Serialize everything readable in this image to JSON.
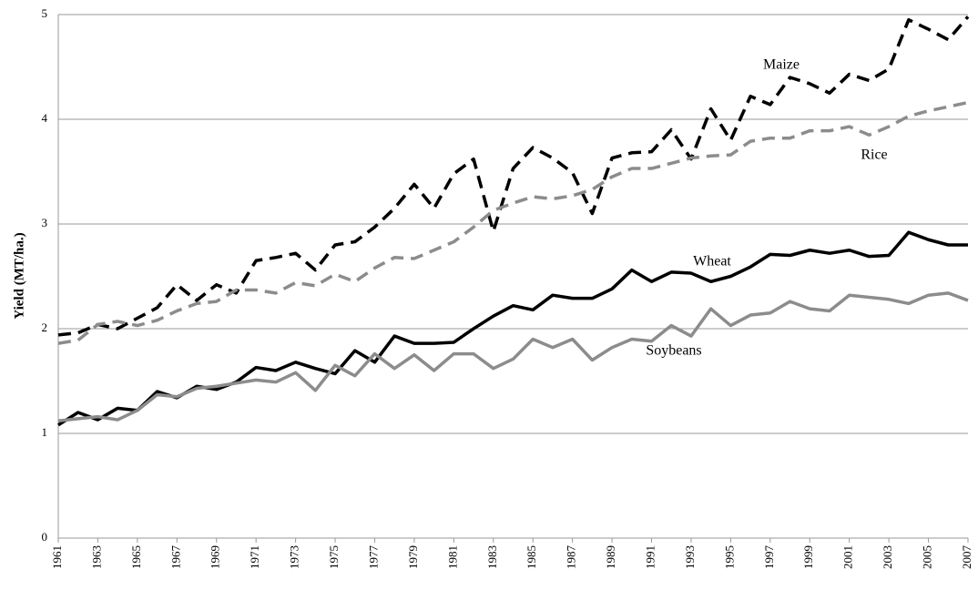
{
  "chart_data": {
    "type": "line",
    "y_label": "Yield (MT/ha.)",
    "x": [
      1961,
      1962,
      1963,
      1964,
      1965,
      1966,
      1967,
      1968,
      1969,
      1970,
      1971,
      1972,
      1973,
      1974,
      1975,
      1976,
      1977,
      1978,
      1979,
      1980,
      1981,
      1982,
      1983,
      1984,
      1985,
      1986,
      1987,
      1988,
      1989,
      1990,
      1991,
      1992,
      1993,
      1994,
      1995,
      1996,
      1997,
      1998,
      1999,
      2000,
      2001,
      2002,
      2003,
      2004,
      2005,
      2006,
      2007
    ],
    "xlim": [
      1961,
      2007
    ],
    "xticks": [
      1961,
      1963,
      1965,
      1967,
      1969,
      1971,
      1973,
      1975,
      1977,
      1979,
      1981,
      1983,
      1985,
      1987,
      1989,
      1991,
      1993,
      1995,
      1997,
      1999,
      2001,
      2003,
      2005,
      2007
    ],
    "ylim": [
      0,
      5
    ],
    "yticks": [
      0,
      1,
      2,
      3,
      4,
      5
    ],
    "grid": true,
    "series": [
      {
        "name": "Maize",
        "color": "#000000",
        "dashed": true,
        "values": [
          1.94,
          1.96,
          2.04,
          2.0,
          2.1,
          2.2,
          2.42,
          2.27,
          2.42,
          2.34,
          2.65,
          2.68,
          2.72,
          2.56,
          2.8,
          2.83,
          2.97,
          3.15,
          3.38,
          3.15,
          3.48,
          3.62,
          2.93,
          3.53,
          3.73,
          3.63,
          3.49,
          3.1,
          3.63,
          3.68,
          3.69,
          3.9,
          3.62,
          4.1,
          3.8,
          4.22,
          4.14,
          4.4,
          4.34,
          4.25,
          4.43,
          4.37,
          4.48,
          4.95,
          4.86,
          4.76,
          4.98
        ]
      },
      {
        "name": "Rice",
        "color": "#8c8c8c",
        "dashed": true,
        "values": [
          1.86,
          1.89,
          2.04,
          2.07,
          2.03,
          2.08,
          2.17,
          2.24,
          2.26,
          2.37,
          2.37,
          2.34,
          2.44,
          2.41,
          2.52,
          2.45,
          2.58,
          2.68,
          2.67,
          2.75,
          2.83,
          2.97,
          3.13,
          3.2,
          3.26,
          3.24,
          3.27,
          3.33,
          3.45,
          3.53,
          3.53,
          3.58,
          3.63,
          3.65,
          3.66,
          3.79,
          3.82,
          3.82,
          3.89,
          3.89,
          3.93,
          3.85,
          3.93,
          4.03,
          4.08,
          4.12,
          4.16
        ]
      },
      {
        "name": "Wheat",
        "color": "#000000",
        "dashed": false,
        "values": [
          1.08,
          1.2,
          1.13,
          1.24,
          1.22,
          1.4,
          1.34,
          1.45,
          1.42,
          1.49,
          1.63,
          1.6,
          1.68,
          1.62,
          1.57,
          1.79,
          1.68,
          1.93,
          1.86,
          1.86,
          1.87,
          2.0,
          2.12,
          2.22,
          2.18,
          2.32,
          2.29,
          2.29,
          2.38,
          2.56,
          2.45,
          2.54,
          2.53,
          2.45,
          2.5,
          2.59,
          2.71,
          2.7,
          2.75,
          2.72,
          2.75,
          2.69,
          2.7,
          2.92,
          2.85,
          2.8,
          2.8
        ]
      },
      {
        "name": "Soybeans",
        "color": "#8c8c8c",
        "dashed": false,
        "values": [
          1.12,
          1.14,
          1.16,
          1.13,
          1.22,
          1.37,
          1.35,
          1.43,
          1.45,
          1.48,
          1.51,
          1.49,
          1.58,
          1.41,
          1.65,
          1.55,
          1.76,
          1.62,
          1.75,
          1.6,
          1.76,
          1.76,
          1.62,
          1.71,
          1.9,
          1.82,
          1.9,
          1.7,
          1.82,
          1.9,
          1.88,
          2.03,
          1.93,
          2.19,
          2.03,
          2.13,
          2.15,
          2.26,
          2.19,
          2.17,
          2.32,
          2.3,
          2.28,
          2.24,
          2.32,
          2.34,
          2.27
        ]
      }
    ]
  }
}
